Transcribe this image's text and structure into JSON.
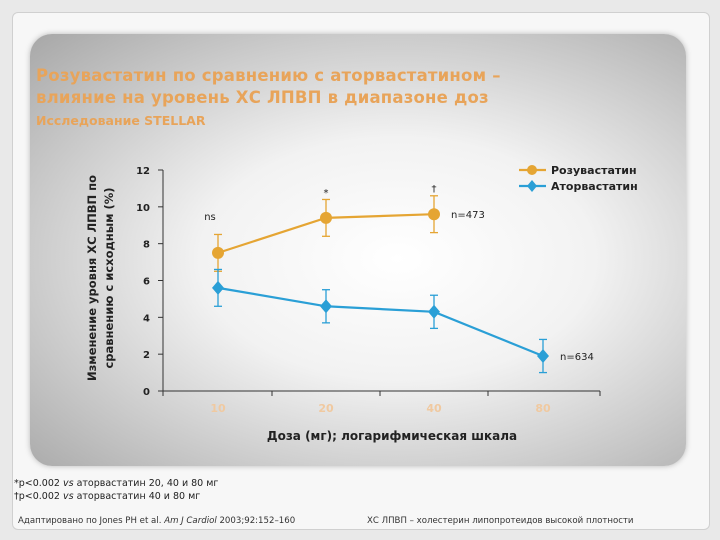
{
  "slide": {
    "title_line1": "Розувастатин по сравнению с аторвастатином –",
    "title_line2": "влияние на уровень ХС ЛПВП в диапазоне доз",
    "subtitle": "Исследование STELLAR",
    "footnote1_symbol": "*p<0.002 ",
    "footnote1_vs": "vs",
    "footnote1_text": " аторвастатин 20, 40 и 80 мг",
    "footnote2_symbol": "†p<0.002 ",
    "footnote2_vs": "vs",
    "footnote2_text": " аторвастатин 40 и 80 мг",
    "reference_prefix": "Адаптировано по Jones PH et al. ",
    "reference_journal": "Am J Cardiol",
    "reference_suffix": " 2003;92:152–160",
    "abbreviation": "ХС ЛПВП – холестерин липопротеидов высокой плотности"
  },
  "chart_data": {
    "type": "line",
    "xlabel": "Доза (мг); логарифмическая шкала",
    "ylabel_line1": "Изменение уровня ХС ЛПВП по",
    "ylabel_line2": "сравнению с исходным (%)",
    "x_scale": "log",
    "categories": [
      "10",
      "20",
      "40",
      "80"
    ],
    "ylim": [
      0,
      12
    ],
    "yticks": [
      "0",
      "2",
      "4",
      "6",
      "8",
      "10",
      "12"
    ],
    "legend_position": "top-right",
    "series": [
      {
        "name": "Розувастатин",
        "color": "#e5a533",
        "marker": "circle",
        "x": [
          "10",
          "20",
          "40"
        ],
        "values": [
          7.5,
          9.4,
          9.6
        ],
        "errors": [
          1.0,
          1.0,
          1.0
        ]
      },
      {
        "name": "Аторвастатин",
        "color": "#2a9fd6",
        "marker": "diamond",
        "x": [
          "10",
          "20",
          "40",
          "80"
        ],
        "values": [
          5.6,
          4.6,
          4.3,
          1.9
        ],
        "errors": [
          1.0,
          0.9,
          0.9,
          0.9
        ]
      }
    ],
    "annotations": [
      {
        "series": 0,
        "point": 0,
        "text": "ns",
        "position": "left-above"
      },
      {
        "series": 0,
        "point": 1,
        "text": "*",
        "position": "above"
      },
      {
        "series": 0,
        "point": 2,
        "text": "†",
        "position": "above"
      },
      {
        "series": 0,
        "point": 2,
        "text": "n=473",
        "position": "right"
      },
      {
        "series": 1,
        "point": 3,
        "text": "n=634",
        "position": "right"
      }
    ]
  }
}
